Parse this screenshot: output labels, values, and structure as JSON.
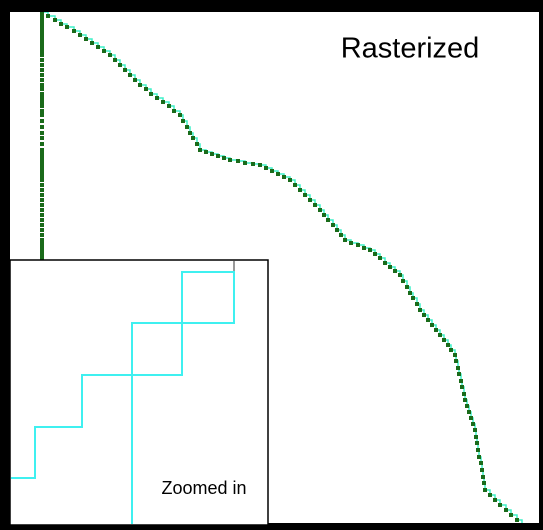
{
  "labels": {
    "title": "Rasterized",
    "inset_caption": "Zoomed in"
  }
}
